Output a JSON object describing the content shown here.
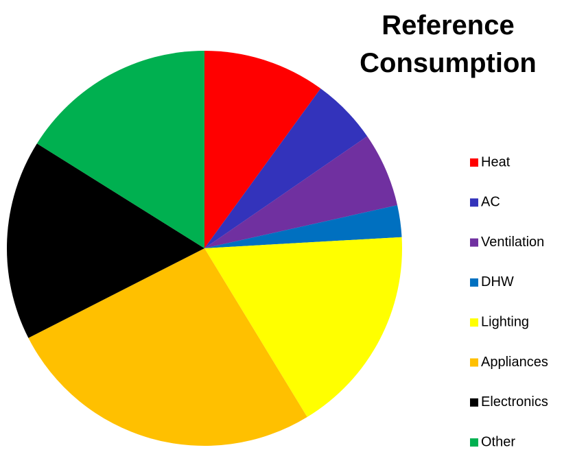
{
  "chart_data": {
    "type": "pie",
    "title": "Reference Consumption",
    "categories": [
      "Heat",
      "AC",
      "Ventilation",
      "DHW",
      "Lighting",
      "Appliances",
      "Electronics",
      "Other"
    ],
    "values": [
      10.0,
      5.4,
      6.1,
      2.6,
      17.2,
      26.2,
      16.4,
      16.1
    ],
    "colors": [
      "#ff0000",
      "#3333bb",
      "#7030a0",
      "#0070c0",
      "#ffff00",
      "#ffc000",
      "#000000",
      "#00b050"
    ],
    "legend": "right"
  }
}
